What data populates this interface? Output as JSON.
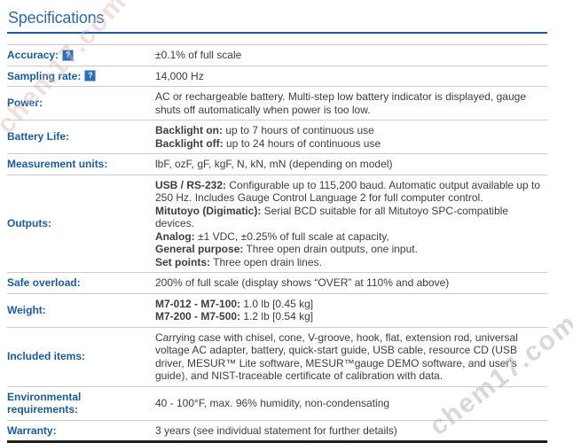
{
  "page": {
    "title": "Specifications"
  },
  "watermarks": {
    "top": "chem17.com",
    "bottom": "chem17.com"
  },
  "table": {
    "help_glyph": "?",
    "rows": [
      {
        "label": "Accuracy:",
        "help": true,
        "lines": [
          [
            {
              "b": 0,
              "t": "±0.1% of full scale"
            }
          ]
        ]
      },
      {
        "label": "Sampling rate:",
        "help": true,
        "lines": [
          [
            {
              "b": 0,
              "t": "14,000 Hz"
            }
          ]
        ]
      },
      {
        "label": "Power:",
        "help": false,
        "lines": [
          [
            {
              "b": 0,
              "t": "AC or rechargeable battery. Multi-step low battery indicator is displayed, gauge"
            }
          ],
          [
            {
              "b": 0,
              "t": "shuts off automatically when power is too low."
            }
          ]
        ]
      },
      {
        "label": "Battery Life:",
        "help": false,
        "lines": [
          [
            {
              "b": 1,
              "t": "Backlight on:"
            },
            {
              "b": 0,
              "t": " up to 7 hours of continuous use"
            }
          ],
          [
            {
              "b": 1,
              "t": "Backlight off:"
            },
            {
              "b": 0,
              "t": " up to 24 hours of continuous use"
            }
          ]
        ]
      },
      {
        "label": "Measurement units:",
        "help": false,
        "lines": [
          [
            {
              "b": 0,
              "t": "lbF, ozF, gF, kgF, N, kN, mN (depending on model)"
            }
          ]
        ]
      },
      {
        "label": "Outputs:",
        "help": false,
        "lines": [
          [
            {
              "b": 1,
              "t": "USB / RS-232:"
            },
            {
              "b": 0,
              "t": " Configurable up to 115,200 baud. Automatic output available up to"
            }
          ],
          [
            {
              "b": 0,
              "t": "250 Hz. Includes Gauge Control Language 2 for full computer control."
            }
          ],
          [
            {
              "b": 1,
              "t": "Mitutoyo (Digimatic):"
            },
            {
              "b": 0,
              "t": " Serial BCD suitable for all Mitutoyo SPC-compatible"
            }
          ],
          [
            {
              "b": 0,
              "t": "devices."
            }
          ],
          [
            {
              "b": 1,
              "t": "Analog:"
            },
            {
              "b": 0,
              "t": " ±1 VDC, ±0.25% of full scale at capacity,"
            }
          ],
          [
            {
              "b": 1,
              "t": "General purpose:"
            },
            {
              "b": 0,
              "t": " Three open drain outputs, one input."
            }
          ],
          [
            {
              "b": 1,
              "t": "Set points:"
            },
            {
              "b": 0,
              "t": " Three open drain lines."
            }
          ]
        ]
      },
      {
        "label": "Safe overload:",
        "help": false,
        "lines": [
          [
            {
              "b": 0,
              "t": "200% of full scale (display shows “OVER” at 110% and above)"
            }
          ]
        ]
      },
      {
        "label": "Weight:",
        "help": false,
        "lines": [
          [
            {
              "b": 1,
              "t": "M7-012 - M7-100:"
            },
            {
              "b": 0,
              "t": " 1.0 lb [0.45 kg]"
            }
          ],
          [
            {
              "b": 1,
              "t": "M7-200 - M7-500:"
            },
            {
              "b": 0,
              "t": " 1.2 lb [0.54 kg]"
            }
          ]
        ]
      },
      {
        "label": "Included items:",
        "help": false,
        "lines": [
          [
            {
              "b": 0,
              "t": "Carrying case with chisel, cone, V-groove, hook, flat, extension rod, universal"
            }
          ],
          [
            {
              "b": 0,
              "t": "voltage AC adapter, battery, quick-start guide, USB cable, resource CD (USB"
            }
          ],
          [
            {
              "b": 0,
              "t": "driver, MESUR™ Lite software, MESUR™gauge DEMO software, and user's"
            }
          ],
          [
            {
              "b": 0,
              "t": "guide), and NIST-traceable certificate of calibration with data."
            }
          ]
        ]
      },
      {
        "label": "Environmental requirements:",
        "help": false,
        "lines": [
          [
            {
              "b": 0,
              "t": "40 - 100°F, max. 96% humidity, non-condensating"
            }
          ]
        ]
      },
      {
        "label": "Warranty:",
        "help": false,
        "lines": [
          [
            {
              "b": 0,
              "t": "3 years (see individual statement for further details)"
            }
          ]
        ]
      }
    ]
  }
}
